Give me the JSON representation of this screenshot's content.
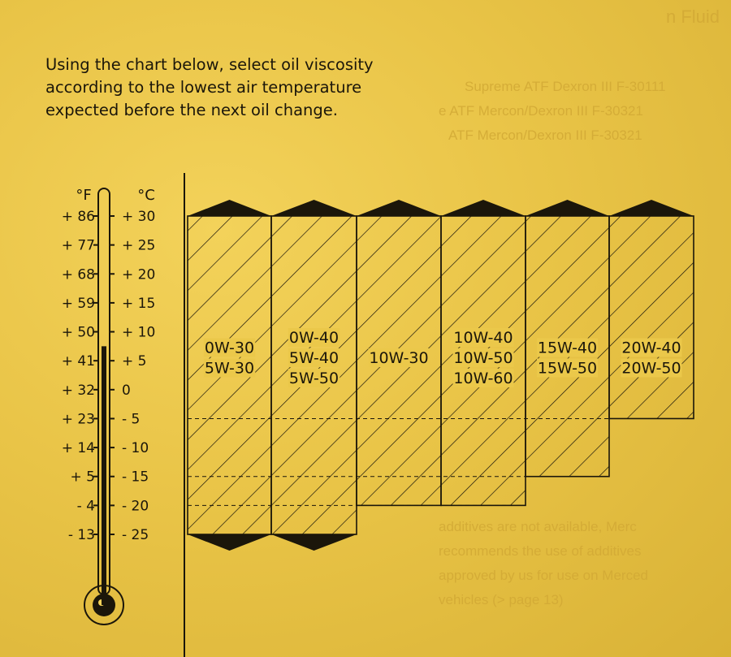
{
  "page": {
    "background_text": [
      "n Fluid",
      "Supreme ATF Dexron III F-30111",
      "e ATF Mercon/Dexron III F-30321",
      "ATF Mercon/Dexron III F-30321",
      "additives are not available, Merc",
      "recommends the use of additives",
      "approved by us for use on Merced",
      "vehicles (> page 13)"
    ],
    "intro_lines": [
      "Using the chart below, select oil viscosity",
      "according to the lowest air temperature",
      "expected before the next oil change."
    ]
  },
  "colors": {
    "ink": "#1b160a",
    "paper": "#e9c447"
  },
  "chart_data": {
    "type": "bar",
    "description_units": "°C",
    "fahrenheit_label": "°F",
    "celsius_label": "°C",
    "fahrenheit_ticks": [
      "+ 86",
      "+ 77",
      "+ 68",
      "+ 59",
      "+ 50",
      "+ 41",
      "+ 32",
      "+ 23",
      "+ 14",
      "+ 5",
      "- 4",
      "- 13"
    ],
    "celsius_ticks": [
      "+ 30",
      "+ 25",
      "+ 20",
      "+ 15",
      "+ 10",
      "+ 5",
      "0",
      "- 5",
      "- 10",
      "- 15",
      "- 20",
      "- 25"
    ],
    "celsius_values": [
      30,
      25,
      20,
      15,
      10,
      5,
      0,
      -5,
      -10,
      -15,
      -20,
      -25
    ],
    "ylim": [
      -25,
      30
    ],
    "thermometer_level_c": 7.5,
    "dashed_reference_lines_c": [
      -5,
      -15,
      -20
    ],
    "categories": [
      [
        "0W-30",
        "5W-30"
      ],
      [
        "0W-40",
        "5W-40",
        "5W-50"
      ],
      [
        "10W-30"
      ],
      [
        "10W-40",
        "10W-50",
        "10W-60"
      ],
      [
        "15W-40",
        "15W-50"
      ],
      [
        "20W-40",
        "20W-50"
      ]
    ],
    "series": [
      {
        "lower_c": [
          -25,
          -25,
          -20,
          -20,
          -15,
          -5
        ],
        "upper_c": [
          30,
          30,
          30,
          30,
          30,
          30
        ]
      }
    ]
  }
}
